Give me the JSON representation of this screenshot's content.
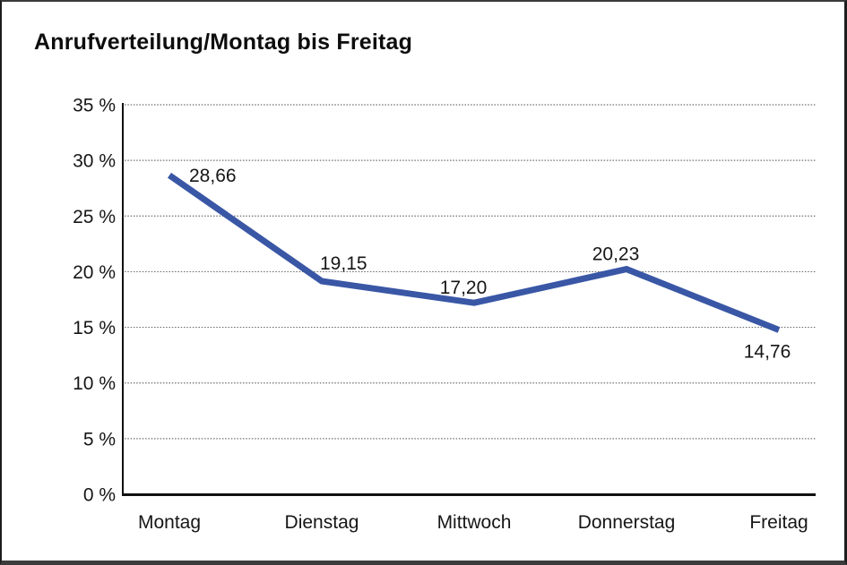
{
  "chart_data": {
    "type": "line",
    "title": "Anrufverteilung/Montag bis Freitag",
    "categories": [
      "Montag",
      "Dienstag",
      "Mittwoch",
      "Donnerstag",
      "Freitag"
    ],
    "series": [
      {
        "name": "Anrufverteilung",
        "values": [
          28.66,
          19.15,
          17.2,
          20.23,
          14.76
        ],
        "value_labels": [
          "28,66",
          "19,15",
          "17,20",
          "20,23",
          "14,76"
        ],
        "label_placement": [
          "right",
          "above-right",
          "above",
          "above",
          "below"
        ]
      }
    ],
    "xlabel": "",
    "ylabel": "",
    "ylim": [
      0,
      35
    ],
    "y_tick_step": 5,
    "y_tick_labels": [
      "0 %",
      "5 %",
      "10 %",
      "15 %",
      "20 %",
      "25 %",
      "30 %",
      "35 %"
    ],
    "grid": "horizontal-dotted",
    "legend": "none",
    "colors": {
      "series_line": "#3A57A6",
      "gridline": "#6e6e6e",
      "axis": "#111111",
      "tick_text": "#161616",
      "data_label_text": "#161616",
      "title_text": "#0d0d0d"
    }
  }
}
